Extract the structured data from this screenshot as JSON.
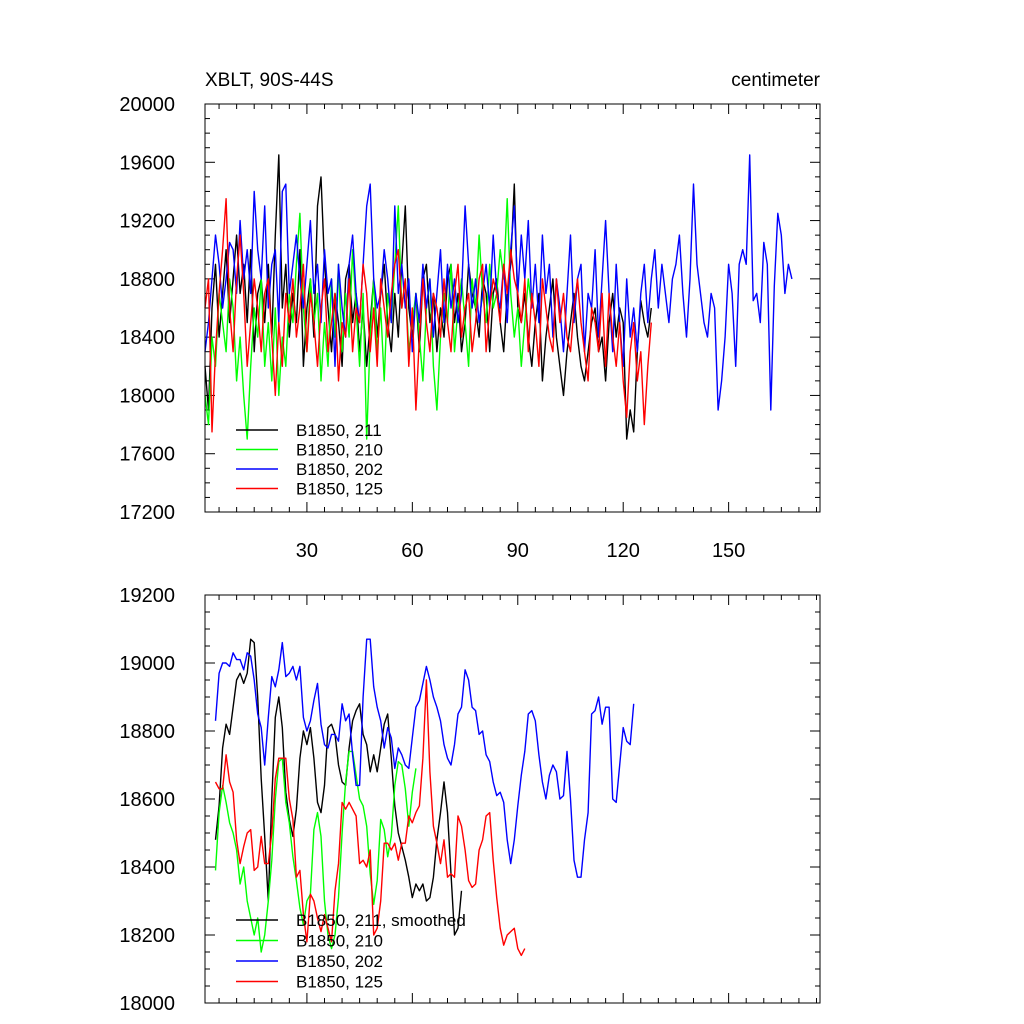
{
  "chart_data": [
    {
      "type": "line",
      "title_left": "XBLT, 90S-44S",
      "title_right": "centimeter",
      "xlim": [
        1,
        176
      ],
      "ylim": [
        17200,
        20000
      ],
      "x_ticks": [
        30,
        60,
        90,
        120,
        150
      ],
      "x_tick_labels": [
        "30",
        "60",
        "90",
        "120",
        "150"
      ],
      "y_ticks": [
        17200,
        17600,
        18000,
        18400,
        18800,
        19200,
        19600,
        20000
      ],
      "y_tick_labels": [
        "17200",
        "17600",
        "18000",
        "18400",
        "18800",
        "19200",
        "19600",
        "20000"
      ],
      "legend_position": "bottom-left",
      "series": [
        {
          "name": "B1850, 211",
          "color": "#000000",
          "x_start": 1,
          "values": [
            18200,
            17900,
            18600,
            18900,
            18400,
            18700,
            19000,
            18500,
            18800,
            19100,
            18700,
            18900,
            18500,
            19000,
            18300,
            18700,
            18800,
            18500,
            18900,
            18400,
            19100,
            19650,
            18600,
            18900,
            18400,
            18700,
            18500,
            19000,
            18200,
            18600,
            18800,
            18400,
            19300,
            19500,
            18900,
            18600,
            18300,
            18700,
            18500,
            18200,
            18800,
            18900,
            18500,
            18700,
            18300,
            18600,
            18200,
            18500,
            18800,
            18400,
            18700,
            18900,
            18500,
            18300,
            18700,
            18400,
            18900,
            19300,
            18600,
            18400,
            18700,
            18300,
            18800,
            18900,
            18500,
            18700,
            18300,
            18600,
            18400,
            18800,
            18900,
            18500,
            18700,
            18300,
            18500,
            18900,
            18700,
            18600,
            18400,
            18800,
            18700,
            18300,
            18700,
            18800,
            18500,
            18300,
            18700,
            18900,
            19450,
            18600,
            18500,
            18700,
            18400,
            18200,
            18500,
            18700,
            18100,
            18400,
            18600,
            18800,
            18400,
            18200,
            18000,
            18300,
            18500,
            18700,
            18400,
            18200,
            18100,
            18300,
            18500,
            18600,
            18300,
            18400,
            18100,
            18500,
            18700,
            18400,
            18600,
            18500,
            17700,
            17900,
            17750,
            18300,
            18650,
            18500,
            18400,
            18600
          ]
        },
        {
          "name": "B1850, 210",
          "color": "#00ff00",
          "x_start": 1,
          "values": [
            18000,
            17800,
            18400,
            18200,
            18700,
            18500,
            18300,
            18800,
            18600,
            18100,
            18400,
            18000,
            17700,
            18200,
            18600,
            18400,
            18800,
            18200,
            18500,
            18100,
            18600,
            18000,
            18400,
            18200,
            18700,
            18500,
            18900,
            19250,
            18600,
            18300,
            18800,
            18500,
            18700,
            18100,
            18500,
            18200,
            18800,
            18400,
            18900,
            18300,
            18700,
            18400,
            19000,
            18600,
            18200,
            18700,
            17700,
            18400,
            18800,
            18300,
            18600,
            18100,
            18700,
            18500,
            18900,
            19300,
            18600,
            18800,
            18300,
            18500,
            18700,
            18400,
            18100,
            18600,
            18800,
            18200,
            17900,
            18400,
            18700,
            18500,
            18900,
            18300,
            18600,
            18800,
            18500,
            18200,
            18800,
            18600,
            19100,
            18700,
            18500,
            18900,
            18600,
            18700,
            19000,
            18800,
            19350,
            18700,
            18400,
            18600,
            18200,
            18500,
            18800,
            18600
          ]
        },
        {
          "name": "B1850, 202",
          "color": "#0000ff",
          "x_start": 1,
          "values": [
            18300,
            18500,
            18800,
            19100,
            18900,
            18600,
            18800,
            19050,
            19000,
            18700,
            19200,
            18800,
            19000,
            18700,
            19400,
            19000,
            18800,
            19300,
            18600,
            18900,
            19000,
            18500,
            19400,
            19450,
            18700,
            18900,
            19100,
            18800,
            18600,
            18900,
            19200,
            18700,
            18900,
            18500,
            19000,
            18700,
            18800,
            18200,
            18900,
            18600,
            18400,
            18900,
            19100,
            18700,
            18500,
            18900,
            19300,
            19450,
            18800,
            18600,
            18700,
            19000,
            18800,
            18500,
            19300,
            18700,
            18900,
            18600,
            18800,
            18300,
            18700,
            18500,
            18900,
            18600,
            18800,
            18400,
            18700,
            19000,
            18500,
            18900,
            18600,
            18800,
            18500,
            18700,
            19300,
            18900,
            18600,
            18800,
            18500,
            18700,
            18900,
            18600,
            19100,
            18700,
            18600,
            18900,
            18500,
            19000,
            19300,
            18700,
            19100,
            18800,
            19200,
            18600,
            18900,
            18500,
            19100,
            18700,
            18900,
            18400,
            18800,
            18600,
            18300,
            18700,
            19100,
            18500,
            18800,
            18900,
            18300,
            18700,
            18600,
            19000,
            18400,
            18800,
            19200,
            18700,
            18300,
            18900,
            18500,
            18200,
            18800,
            18400,
            18600,
            18300,
            18700,
            18900,
            18500,
            18800,
            19000,
            18600,
            18900,
            18700,
            18500,
            18800,
            18900,
            19100,
            18700,
            18400,
            18800,
            19450,
            18900,
            18700,
            18500,
            18400,
            18700,
            18600,
            17900,
            18100,
            18400,
            18900,
            18700,
            18200,
            18900,
            19000,
            18900,
            19650,
            18650,
            18700,
            18500,
            19050,
            18900,
            17900,
            18750,
            19250,
            19100,
            18700,
            18900,
            18800
          ]
        },
        {
          "name": "B1850, 125",
          "color": "#ff0000",
          "x_start": 1,
          "values": [
            18600,
            18800,
            17750,
            18300,
            18700,
            19000,
            19350,
            18600,
            18300,
            18800,
            19100,
            18700,
            18200,
            18500,
            18800,
            18600,
            18300,
            18700,
            18800,
            18400,
            18000,
            18500,
            18200,
            18700,
            18500,
            18800,
            18400,
            18600,
            18900,
            18300,
            18700,
            18500,
            18200,
            18600,
            18800,
            18300,
            18500,
            18700,
            18100,
            18500,
            18400,
            18800,
            18300,
            18600,
            18500,
            18900,
            18700,
            18300,
            18600,
            18200,
            18800,
            18600,
            18400,
            18700,
            18900,
            19000,
            18600,
            18800,
            18200,
            18600,
            17900,
            18400,
            18800,
            18500,
            18300,
            18700,
            18600,
            18400,
            18800,
            18500,
            18300,
            18700,
            18900,
            18400,
            18600,
            18700,
            18300,
            18500,
            18800,
            18900,
            18300,
            18600,
            18800,
            18700,
            18500,
            18900,
            18700,
            19000,
            18800,
            18700,
            18500,
            18800,
            18300,
            18700,
            18500,
            18200,
            18800,
            18600,
            18400,
            18300,
            18800,
            18500,
            18700,
            18400,
            18300,
            18600,
            18800,
            18500,
            18300,
            18100,
            18600,
            18500,
            18300,
            18700,
            18200,
            18700,
            18400,
            18200,
            18500,
            18100,
            17850,
            18300,
            18500,
            18100,
            18300,
            17800,
            18200,
            18500
          ]
        }
      ]
    },
    {
      "type": "line",
      "xlim": [
        1,
        176
      ],
      "ylim": [
        18000,
        19200
      ],
      "x_ticks": [
        30,
        60,
        90,
        120,
        150
      ],
      "y_ticks": [
        18000,
        18200,
        18400,
        18600,
        18800,
        19000,
        19200
      ],
      "y_tick_labels": [
        "18000",
        "18200",
        "18400",
        "18600",
        "18800",
        "19000",
        "19200"
      ],
      "legend_position": "bottom-left",
      "series": [
        {
          "name": "B1850, 211, smoothed",
          "color": "#000000",
          "x_start": 4,
          "values": [
            18480,
            18580,
            18750,
            18820,
            18790,
            18870,
            18950,
            18970,
            18940,
            18970,
            19070,
            19060,
            18900,
            18660,
            18490,
            18300,
            18600,
            18840,
            18900,
            18810,
            18620,
            18540,
            18490,
            18570,
            18720,
            18800,
            18760,
            18810,
            18720,
            18590,
            18560,
            18640,
            18810,
            18820,
            18790,
            18700,
            18650,
            18640,
            18750,
            18830,
            18860,
            18880,
            18790,
            18760,
            18680,
            18730,
            18680,
            18750,
            18820,
            18850,
            18720,
            18580,
            18500,
            18460,
            18420,
            18370,
            18310,
            18350,
            18330,
            18350,
            18300,
            18310,
            18370,
            18480,
            18560,
            18650,
            18560,
            18380,
            18200,
            18220,
            18330
          ]
        },
        {
          "name": "B1850, 210",
          "color": "#00ff00",
          "x_start": 4,
          "values": [
            18390,
            18560,
            18640,
            18590,
            18530,
            18500,
            18450,
            18350,
            18400,
            18300,
            18250,
            18200,
            18250,
            18150,
            18200,
            18300,
            18420,
            18600,
            18710,
            18720,
            18590,
            18530,
            18430,
            18360,
            18280,
            18230,
            18300,
            18320,
            18510,
            18560,
            18490,
            18300,
            18200,
            18160,
            18200,
            18310,
            18500,
            18650,
            18740,
            18740,
            18670,
            18600,
            18580,
            18520,
            18380,
            18290,
            18360,
            18540,
            18510,
            18430,
            18490,
            18640,
            18710,
            18700,
            18630,
            18520,
            18620,
            18690
          ]
        },
        {
          "name": "B1850, 202",
          "color": "#0000ff",
          "x_start": 4,
          "values": [
            18830,
            18970,
            19000,
            19000,
            18990,
            19030,
            19010,
            19010,
            18980,
            19030,
            19020,
            18950,
            18850,
            18810,
            18700,
            18840,
            18960,
            18930,
            18980,
            19060,
            18960,
            18970,
            18990,
            18950,
            18990,
            18840,
            18800,
            18830,
            18890,
            18940,
            18820,
            18760,
            18750,
            18790,
            18790,
            18770,
            18880,
            18830,
            18850,
            18730,
            18640,
            18640,
            18900,
            19070,
            19070,
            18930,
            18870,
            18830,
            18750,
            18810,
            18780,
            18690,
            18750,
            18730,
            18700,
            18690,
            18780,
            18870,
            18890,
            18940,
            18990,
            18950,
            18900,
            18870,
            18830,
            18760,
            18720,
            18700,
            18760,
            18850,
            18870,
            18980,
            18950,
            18870,
            18860,
            18790,
            18800,
            18730,
            18710,
            18650,
            18610,
            18620,
            18590,
            18480,
            18410,
            18480,
            18580,
            18670,
            18740,
            18850,
            18860,
            18830,
            18730,
            18650,
            18600,
            18670,
            18700,
            18680,
            18600,
            18610,
            18740,
            18600,
            18420,
            18370,
            18370,
            18480,
            18560,
            18850,
            18860,
            18900,
            18820,
            18870,
            18870,
            18600,
            18590,
            18700,
            18810,
            18770,
            18760,
            18880
          ]
        },
        {
          "name": "B1850, 125",
          "color": "#ff0000",
          "x_start": 4,
          "values": [
            18650,
            18630,
            18630,
            18730,
            18650,
            18620,
            18480,
            18410,
            18460,
            18500,
            18510,
            18390,
            18400,
            18490,
            18410,
            18410,
            18500,
            18660,
            18720,
            18720,
            18720,
            18600,
            18540,
            18370,
            18390,
            18260,
            18180,
            18320,
            18300,
            18250,
            18210,
            18260,
            18220,
            18180,
            18330,
            18410,
            18590,
            18570,
            18590,
            18570,
            18550,
            18410,
            18420,
            18400,
            18450,
            18200,
            18220,
            18300,
            18470,
            18470,
            18450,
            18470,
            18420,
            18470,
            18470,
            18550,
            18530,
            18560,
            18580,
            18720,
            18950,
            18680,
            18520,
            18470,
            18410,
            18480,
            18370,
            18380,
            18370,
            18550,
            18520,
            18450,
            18360,
            18340,
            18350,
            18450,
            18480,
            18550,
            18560,
            18420,
            18310,
            18220,
            18170,
            18200,
            18210,
            18220,
            18160,
            18140,
            18160
          ]
        }
      ]
    }
  ]
}
